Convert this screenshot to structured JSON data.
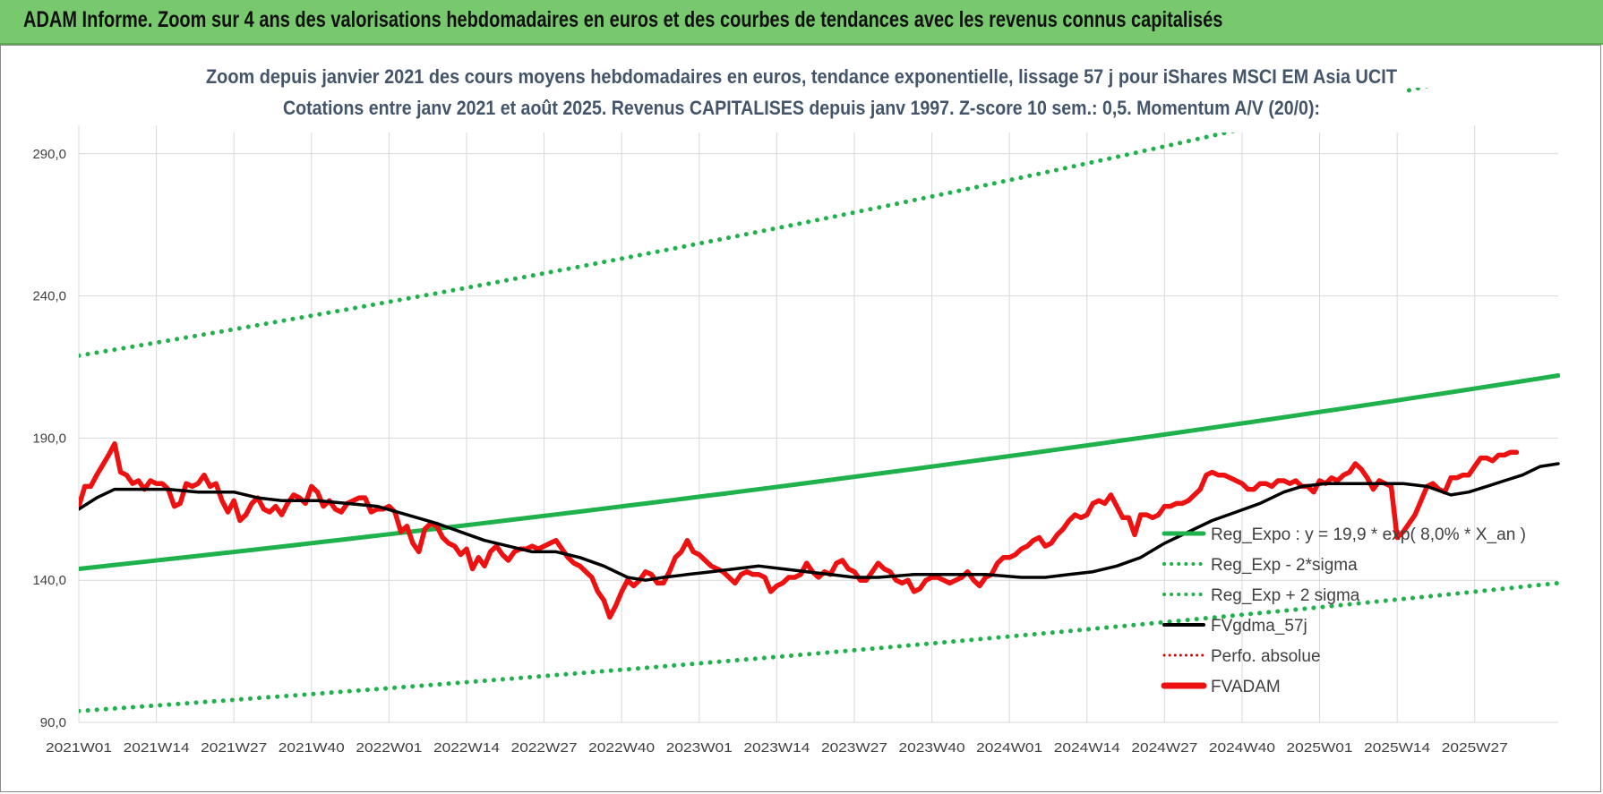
{
  "header": {
    "banner_text": "ADAM Informe. Zoom sur 4 ans des valorisations hebdomadaires en euros et des courbes de tendances avec les revenus connus capitalisés"
  },
  "chart_data": {
    "type": "line",
    "title_line1": "Zoom depuis janvier 2021 des cours moyens hebdomadaires en euros, tendance exponentielle, lissage 57 j pour iShares MSCI EM Asia UCIT",
    "title_line2": "Cotations entre janv 2021 et août 2025. Revenus CAPITALISES depuis janv 1997. Z-score 10 sem.: 0,5. Momentum A/V (20/0):",
    "xlabel": "",
    "ylabel": "",
    "ylim": [
      90,
      300
    ],
    "yticks": [
      "90,0",
      "140,0",
      "190,0",
      "240,0",
      "290,0"
    ],
    "x_ticks": [
      "2021W01",
      "2021W14",
      "2021W27",
      "2021W40",
      "2022W01",
      "2022W14",
      "2022W27",
      "2022W40",
      "2023W01",
      "2023W14",
      "2023W27",
      "2023W40",
      "2024W01",
      "2024W14",
      "2024W27",
      "2024W40",
      "2025W01",
      "2025W14",
      "2025W27"
    ],
    "grid": true,
    "legend_position": "bottom-right",
    "series": [
      {
        "name": "Reg_Expo : y = 19,9 * exp( 8,0% *  X_an )",
        "color": "#1fb14c",
        "style": "solid",
        "start": 144,
        "end": 212
      },
      {
        "name": "Reg_Exp - 2*sigma",
        "color": "#1fb14c",
        "style": "dotted",
        "start": 94,
        "end": 139
      },
      {
        "name": "Reg_Exp + 2 sigma",
        "color": "#1fb14c",
        "style": "dotted",
        "start": 219,
        "end": 325
      },
      {
        "name": "FVgdma_57j",
        "color": "#000000",
        "style": "solid",
        "points": [
          [
            0,
            165
          ],
          [
            3,
            169
          ],
          [
            6,
            172
          ],
          [
            10,
            172
          ],
          [
            15,
            172
          ],
          [
            20,
            171
          ],
          [
            26,
            171
          ],
          [
            30,
            169
          ],
          [
            34,
            168
          ],
          [
            40,
            168
          ],
          [
            45,
            167
          ],
          [
            50,
            166
          ],
          [
            55,
            163
          ],
          [
            60,
            160
          ],
          [
            64,
            157
          ],
          [
            68,
            154
          ],
          [
            72,
            152
          ],
          [
            76,
            150
          ],
          [
            80,
            150
          ],
          [
            84,
            148
          ],
          [
            88,
            145
          ],
          [
            92,
            141
          ],
          [
            95,
            140
          ],
          [
            98,
            141
          ],
          [
            102,
            142
          ],
          [
            106,
            143
          ],
          [
            110,
            144
          ],
          [
            114,
            145
          ],
          [
            118,
            144
          ],
          [
            122,
            143
          ],
          [
            126,
            142
          ],
          [
            130,
            141
          ],
          [
            134,
            141
          ],
          [
            140,
            142
          ],
          [
            146,
            142
          ],
          [
            152,
            142
          ],
          [
            158,
            141
          ],
          [
            162,
            141
          ],
          [
            166,
            142
          ],
          [
            170,
            143
          ],
          [
            174,
            145
          ],
          [
            178,
            148
          ],
          [
            182,
            153
          ],
          [
            186,
            157
          ],
          [
            190,
            161
          ],
          [
            194,
            164
          ],
          [
            198,
            167
          ],
          [
            202,
            171
          ],
          [
            205,
            173
          ],
          [
            209,
            174
          ],
          [
            213,
            174
          ],
          [
            218,
            174
          ],
          [
            222,
            174
          ],
          [
            226,
            173
          ],
          [
            230,
            170
          ],
          [
            233,
            171
          ],
          [
            236,
            173
          ],
          [
            239,
            175
          ],
          [
            242,
            177
          ],
          [
            245,
            180
          ],
          [
            248,
            181
          ]
        ]
      },
      {
        "name": "Perfo. absolue",
        "color": "#e00000",
        "style": "dotted",
        "points": []
      },
      {
        "name": "FVADAM",
        "color": "#ee1111",
        "style": "solid",
        "points": [
          [
            0,
            166
          ],
          [
            1,
            173
          ],
          [
            2,
            173
          ],
          [
            3,
            177
          ],
          [
            5,
            184
          ],
          [
            6,
            188
          ],
          [
            7,
            178
          ],
          [
            8,
            177
          ],
          [
            9,
            174
          ],
          [
            10,
            175
          ],
          [
            11,
            172
          ],
          [
            12,
            175
          ],
          [
            13,
            174
          ],
          [
            14,
            174
          ],
          [
            15,
            172
          ],
          [
            16,
            166
          ],
          [
            17,
            167
          ],
          [
            18,
            174
          ],
          [
            19,
            173
          ],
          [
            20,
            174
          ],
          [
            21,
            177
          ],
          [
            22,
            173
          ],
          [
            23,
            174
          ],
          [
            24,
            168
          ],
          [
            25,
            164
          ],
          [
            26,
            168
          ],
          [
            27,
            161
          ],
          [
            28,
            163
          ],
          [
            29,
            167
          ],
          [
            30,
            169
          ],
          [
            31,
            165
          ],
          [
            32,
            164
          ],
          [
            33,
            166
          ],
          [
            34,
            163
          ],
          [
            35,
            167
          ],
          [
            36,
            170
          ],
          [
            37,
            169
          ],
          [
            38,
            167
          ],
          [
            39,
            173
          ],
          [
            40,
            171
          ],
          [
            41,
            166
          ],
          [
            42,
            168
          ],
          [
            43,
            165
          ],
          [
            44,
            164
          ],
          [
            45,
            167
          ],
          [
            46,
            168
          ],
          [
            47,
            169
          ],
          [
            48,
            169
          ],
          [
            49,
            164
          ],
          [
            50,
            165
          ],
          [
            51,
            165
          ],
          [
            52,
            166
          ],
          [
            53,
            164
          ],
          [
            54,
            157
          ],
          [
            55,
            159
          ],
          [
            56,
            153
          ],
          [
            57,
            150
          ],
          [
            58,
            158
          ],
          [
            59,
            160
          ],
          [
            60,
            159
          ],
          [
            61,
            155
          ],
          [
            62,
            153
          ],
          [
            63,
            152
          ],
          [
            64,
            149
          ],
          [
            65,
            151
          ],
          [
            66,
            144
          ],
          [
            67,
            148
          ],
          [
            68,
            145
          ],
          [
            69,
            150
          ],
          [
            70,
            152
          ],
          [
            71,
            149
          ],
          [
            72,
            147
          ],
          [
            73,
            150
          ],
          [
            74,
            151
          ],
          [
            75,
            151
          ],
          [
            76,
            152
          ],
          [
            77,
            151
          ],
          [
            78,
            152
          ],
          [
            79,
            153
          ],
          [
            80,
            154
          ],
          [
            81,
            151
          ],
          [
            82,
            148
          ],
          [
            83,
            146
          ],
          [
            84,
            145
          ],
          [
            85,
            143
          ],
          [
            86,
            141
          ],
          [
            87,
            136
          ],
          [
            88,
            133
          ],
          [
            89,
            127
          ],
          [
            90,
            131
          ],
          [
            91,
            136
          ],
          [
            92,
            140
          ],
          [
            93,
            138
          ],
          [
            94,
            140
          ],
          [
            95,
            143
          ],
          [
            96,
            142
          ],
          [
            97,
            139
          ],
          [
            98,
            139
          ],
          [
            99,
            143
          ],
          [
            100,
            148
          ],
          [
            101,
            150
          ],
          [
            102,
            154
          ],
          [
            103,
            150
          ],
          [
            104,
            149
          ],
          [
            105,
            147
          ],
          [
            106,
            145
          ],
          [
            107,
            144
          ],
          [
            108,
            143
          ],
          [
            109,
            141
          ],
          [
            110,
            139
          ],
          [
            111,
            142
          ],
          [
            112,
            143
          ],
          [
            113,
            142
          ],
          [
            114,
            142
          ],
          [
            115,
            141
          ],
          [
            116,
            136
          ],
          [
            117,
            138
          ],
          [
            118,
            139
          ],
          [
            119,
            141
          ],
          [
            120,
            141
          ],
          [
            121,
            142
          ],
          [
            122,
            146
          ],
          [
            123,
            143
          ],
          [
            124,
            141
          ],
          [
            125,
            143
          ],
          [
            126,
            142
          ],
          [
            127,
            146
          ],
          [
            128,
            147
          ],
          [
            129,
            144
          ],
          [
            130,
            143
          ],
          [
            131,
            140
          ],
          [
            132,
            140
          ],
          [
            133,
            143
          ],
          [
            134,
            146
          ],
          [
            135,
            144
          ],
          [
            136,
            143
          ],
          [
            137,
            140
          ],
          [
            138,
            139
          ],
          [
            139,
            140
          ],
          [
            140,
            136
          ],
          [
            141,
            137
          ],
          [
            142,
            140
          ],
          [
            143,
            141
          ],
          [
            144,
            141
          ],
          [
            145,
            140
          ],
          [
            146,
            139
          ],
          [
            147,
            140
          ],
          [
            148,
            141
          ],
          [
            149,
            143
          ],
          [
            150,
            140
          ],
          [
            151,
            138
          ],
          [
            152,
            141
          ],
          [
            153,
            142
          ],
          [
            154,
            146
          ],
          [
            155,
            148
          ],
          [
            156,
            148
          ],
          [
            157,
            149
          ],
          [
            158,
            151
          ],
          [
            159,
            152
          ],
          [
            160,
            154
          ],
          [
            161,
            155
          ],
          [
            162,
            152
          ],
          [
            163,
            153
          ],
          [
            164,
            156
          ],
          [
            165,
            158
          ],
          [
            166,
            161
          ],
          [
            167,
            163
          ],
          [
            168,
            162
          ],
          [
            169,
            163
          ],
          [
            170,
            167
          ],
          [
            171,
            168
          ],
          [
            172,
            167
          ],
          [
            173,
            170
          ],
          [
            174,
            166
          ],
          [
            175,
            162
          ],
          [
            176,
            162
          ],
          [
            177,
            156
          ],
          [
            178,
            163
          ],
          [
            179,
            163
          ],
          [
            180,
            162
          ],
          [
            181,
            163
          ],
          [
            182,
            166
          ],
          [
            183,
            166
          ],
          [
            184,
            167
          ],
          [
            185,
            167
          ],
          [
            186,
            168
          ],
          [
            187,
            170
          ],
          [
            188,
            172
          ],
          [
            189,
            177
          ],
          [
            190,
            178
          ],
          [
            191,
            177
          ],
          [
            192,
            177
          ],
          [
            193,
            176
          ],
          [
            194,
            175
          ],
          [
            195,
            174
          ],
          [
            196,
            172
          ],
          [
            197,
            172
          ],
          [
            198,
            174
          ],
          [
            199,
            174
          ],
          [
            200,
            173
          ],
          [
            201,
            175
          ],
          [
            202,
            175
          ],
          [
            203,
            174
          ],
          [
            204,
            175
          ],
          [
            205,
            173
          ],
          [
            206,
            173
          ],
          [
            207,
            171
          ],
          [
            208,
            175
          ],
          [
            209,
            174
          ],
          [
            210,
            176
          ],
          [
            211,
            175
          ],
          [
            212,
            177
          ],
          [
            213,
            178
          ],
          [
            214,
            181
          ],
          [
            215,
            179
          ],
          [
            216,
            176
          ],
          [
            217,
            172
          ],
          [
            218,
            175
          ],
          [
            219,
            174
          ],
          [
            220,
            173
          ],
          [
            221,
            155
          ],
          [
            222,
            157
          ],
          [
            223,
            160
          ],
          [
            224,
            163
          ],
          [
            225,
            168
          ],
          [
            226,
            173
          ],
          [
            227,
            174
          ],
          [
            228,
            172
          ],
          [
            229,
            171
          ],
          [
            230,
            176
          ],
          [
            231,
            176
          ],
          [
            232,
            177
          ],
          [
            233,
            177
          ],
          [
            234,
            180
          ],
          [
            235,
            183
          ],
          [
            236,
            183
          ],
          [
            237,
            182
          ],
          [
            238,
            184
          ],
          [
            239,
            184
          ],
          [
            240,
            185
          ],
          [
            241,
            185
          ]
        ]
      }
    ]
  }
}
